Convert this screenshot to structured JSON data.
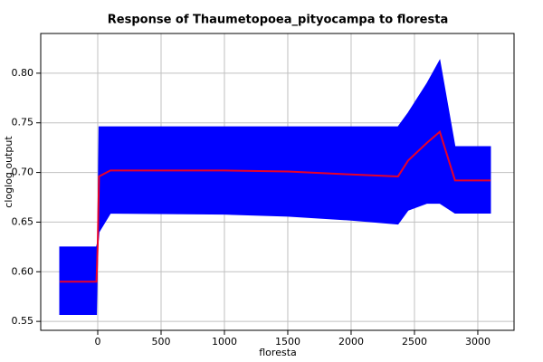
{
  "chart_data": {
    "type": "line",
    "title": "Response of Thaumetopoea_pityocampa to floresta",
    "x_label": "floresta",
    "y_label": "cloglog output",
    "x": [
      -300,
      -10,
      0,
      10,
      100,
      1000,
      1500,
      2000,
      2370,
      2450,
      2600,
      2700,
      2820,
      3100
    ],
    "values": [
      0.59,
      0.59,
      0.628,
      0.696,
      0.702,
      0.702,
      0.701,
      0.698,
      0.696,
      0.712,
      0.73,
      0.741,
      0.692,
      0.692
    ],
    "color": "#e8002a",
    "band": {
      "upper": [
        0.625,
        0.625,
        0.63,
        0.746,
        0.746,
        0.746,
        0.746,
        0.746,
        0.746,
        0.76,
        0.79,
        0.813,
        0.726,
        0.726
      ],
      "lower": [
        0.557,
        0.557,
        0.625,
        0.64,
        0.659,
        0.658,
        0.656,
        0.652,
        0.648,
        0.662,
        0.669,
        0.669,
        0.659,
        0.659
      ],
      "color": "#0000ff"
    },
    "xlim": [
      -450,
      3286
    ],
    "ylim": [
      0.541,
      0.84
    ],
    "xticks": [
      0,
      500,
      1000,
      1500,
      2000,
      2500,
      3000
    ],
    "yticks": [
      0.55,
      {
        "value": 0.6,
        "label": "0.60"
      },
      0.65,
      {
        "value": 0.7,
        "label": "0.70"
      },
      0.75,
      {
        "value": 0.8,
        "label": "0.80"
      }
    ],
    "grid": true
  }
}
